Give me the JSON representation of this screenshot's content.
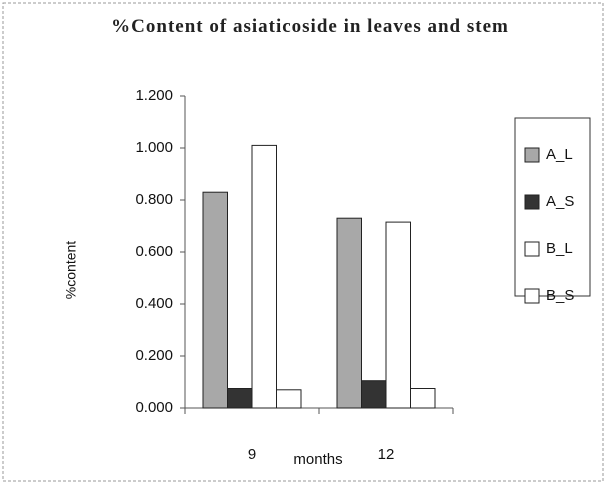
{
  "chart_data": {
    "type": "bar",
    "title": "%Content of asiaticoside in leaves and stem",
    "x_label": "months",
    "y_label": "%content",
    "categories": [
      "9",
      "12"
    ],
    "series": [
      {
        "name": "A_L",
        "color": "#a8a8a8",
        "values": [
          0.83,
          0.73
        ]
      },
      {
        "name": "A_S",
        "color": "#333333",
        "values": [
          0.075,
          0.105
        ]
      },
      {
        "name": "B_L",
        "color": "#ffffff",
        "values": [
          1.01,
          0.715
        ]
      },
      {
        "name": "B_S",
        "color": "#ffffff",
        "values": [
          0.07,
          0.075
        ]
      }
    ],
    "ylim": [
      0,
      1.2
    ],
    "yticks": [
      {
        "value": 0,
        "label": "0.000"
      },
      {
        "value": 0.2,
        "label": "0.200"
      },
      {
        "value": 0.4,
        "label": "0.400"
      },
      {
        "value": 0.6,
        "label": "0.600"
      },
      {
        "value": 0.8,
        "label": "0.800"
      },
      {
        "value": 1.0,
        "label": "1.000"
      },
      {
        "value": 1.2,
        "label": "1.200"
      }
    ],
    "legend": "right"
  }
}
